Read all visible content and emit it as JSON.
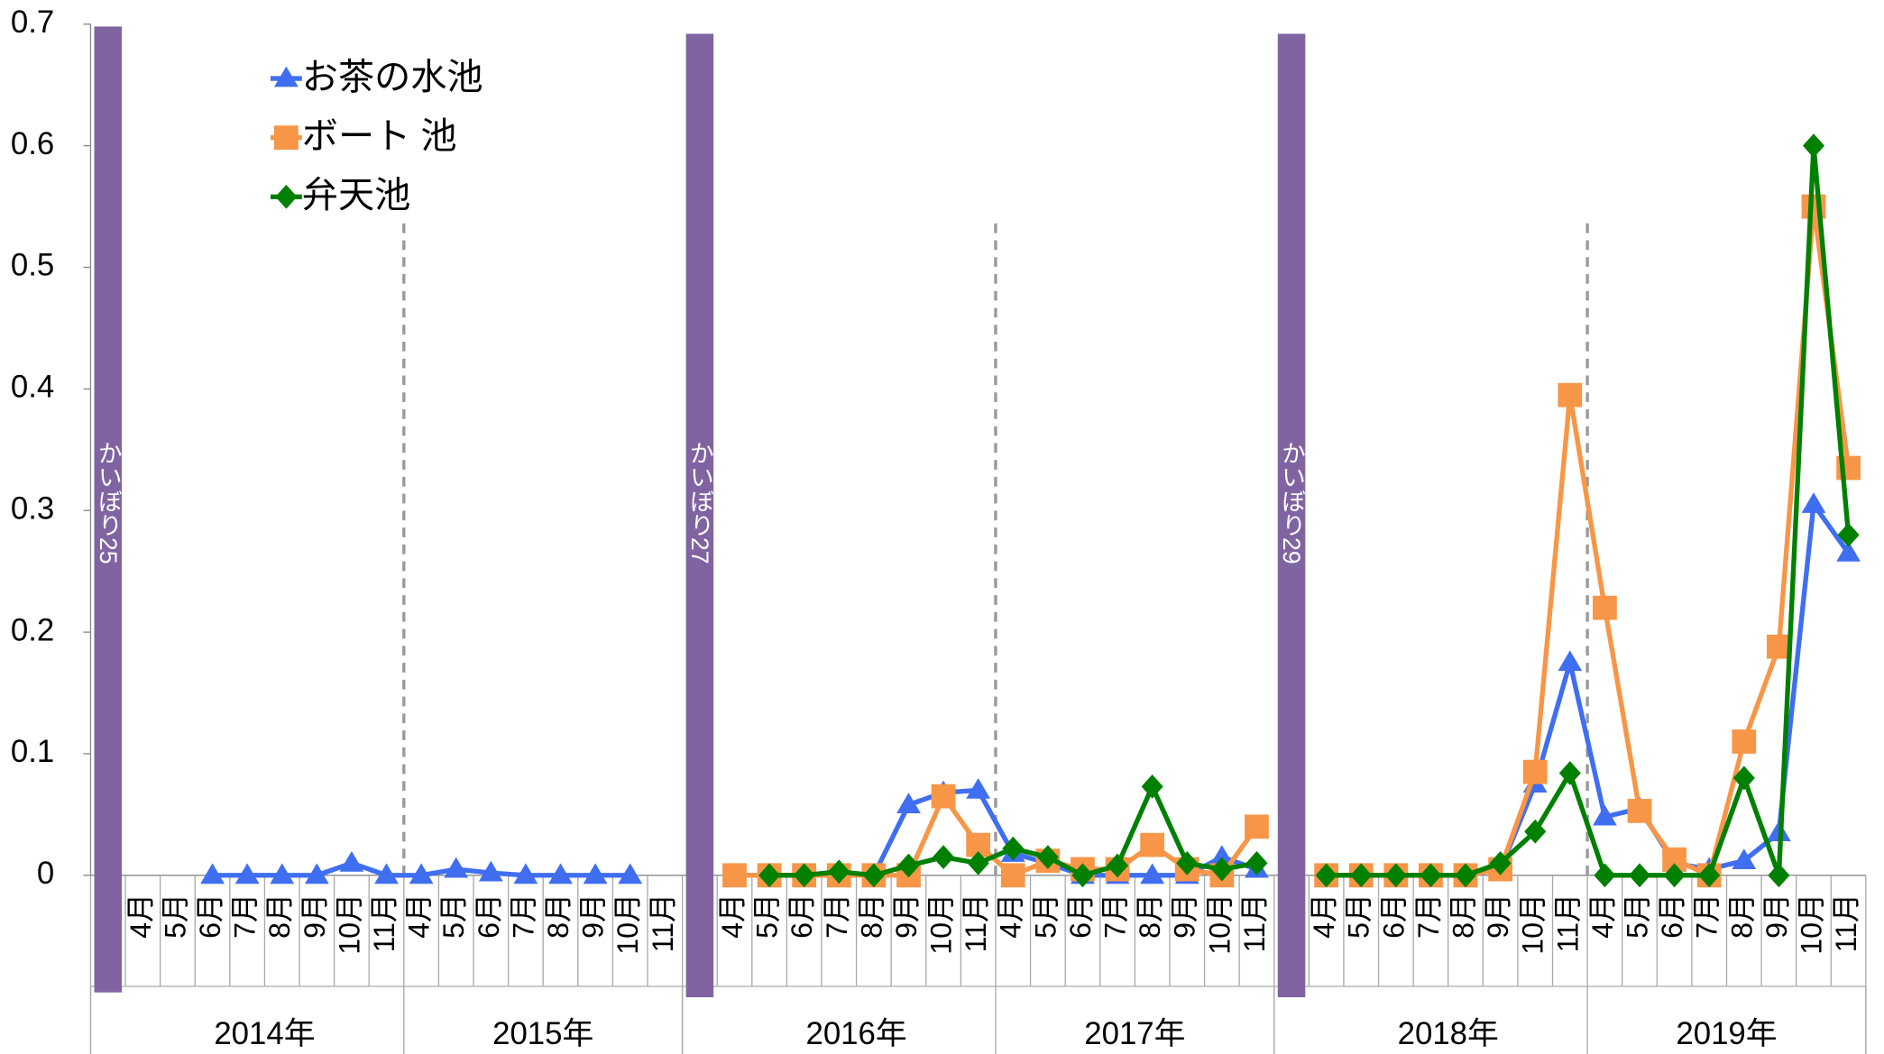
{
  "chart_data": {
    "type": "line",
    "categories": [
      null,
      "4月",
      "5月",
      "6月",
      "7月",
      "8月",
      "9月",
      "10月",
      "11月",
      "4月",
      "5月",
      "6月",
      "7月",
      "8月",
      "9月",
      "10月",
      "11月",
      null,
      "4月",
      "5月",
      "6月",
      "7月",
      "8月",
      "9月",
      "10月",
      "11月",
      "4月",
      "5月",
      "6月",
      "7月",
      "8月",
      "9月",
      "10月",
      "11月",
      null,
      "4月",
      "5月",
      "6月",
      "7月",
      "8月",
      "9月",
      "10月",
      "11月",
      "4月",
      "5月",
      "6月",
      "7月",
      "8月",
      "9月",
      "10月",
      "11月"
    ],
    "years": [
      "2014年",
      "2015年",
      "2016年",
      "2017年",
      "2018年",
      "2019年"
    ],
    "annotations": [
      "かいぼり25",
      "かいぼり27",
      "かいぼり29"
    ],
    "annotation_color": "#8064a2",
    "series": [
      {
        "name": "お茶の水池",
        "color": "#3f6ef0",
        "marker": "triangle",
        "values": [
          null,
          null,
          null,
          0,
          0,
          0,
          0,
          0.01,
          0,
          0,
          0.005,
          0.002,
          0,
          0,
          0,
          0,
          null,
          null,
          0,
          0,
          0,
          0,
          0,
          0.058,
          0.068,
          0.07,
          0.018,
          0.01,
          0,
          0,
          0,
          0,
          0.015,
          0.005,
          null,
          0,
          0,
          0,
          0,
          0,
          0.005,
          0.075,
          0.175,
          0.048,
          0.055,
          0.01,
          0.005,
          0.012,
          0.035,
          0.305,
          0.265
        ]
      },
      {
        "name": "ボート 池",
        "color": "#f79646",
        "marker": "square",
        "values": [
          null,
          null,
          null,
          null,
          null,
          null,
          null,
          null,
          null,
          null,
          null,
          null,
          null,
          null,
          null,
          null,
          null,
          null,
          0,
          0,
          0,
          0,
          0,
          0,
          0.065,
          0.025,
          0,
          0.012,
          0.005,
          0.005,
          0.025,
          0.005,
          0,
          0.04,
          null,
          0,
          0,
          0,
          0,
          0,
          0.005,
          0.085,
          0.395,
          0.22,
          0.053,
          0.013,
          0,
          0.11,
          0.188,
          0.55,
          0.335
        ]
      },
      {
        "name": "弁天池",
        "color": "#008000",
        "marker": "diamond",
        "values": [
          null,
          null,
          null,
          null,
          null,
          null,
          null,
          null,
          null,
          null,
          null,
          null,
          null,
          null,
          null,
          null,
          null,
          null,
          null,
          0,
          0,
          0.003,
          0,
          0.008,
          0.015,
          0.01,
          0.022,
          0.015,
          0,
          0.008,
          0.073,
          0.01,
          0.005,
          0.01,
          null,
          0,
          0,
          0,
          0,
          0,
          0.01,
          0.036,
          0.084,
          0,
          0,
          0,
          0,
          0.08,
          0,
          0.6,
          0.28
        ]
      }
    ],
    "ylim": [
      0,
      0.7
    ],
    "yticks": [
      0,
      0.1,
      0.2,
      0.3,
      0.4,
      0.5,
      0.6,
      0.7
    ],
    "legend": "top-left"
  }
}
